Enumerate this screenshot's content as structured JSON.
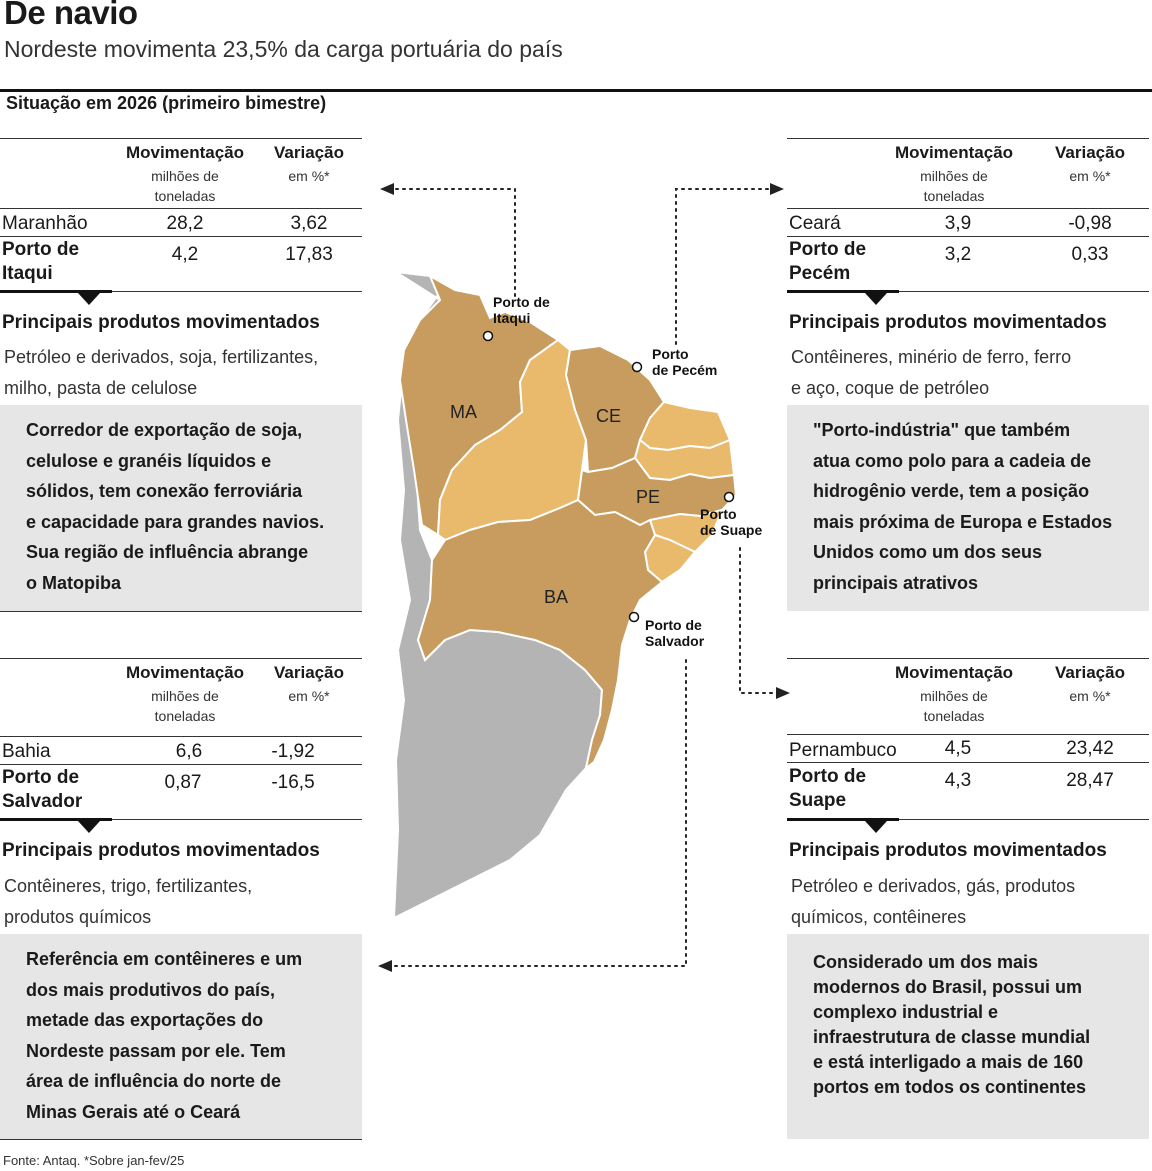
{
  "header": {
    "title": "De navio",
    "subtitle": "Nordeste movimenta 23,5% da carga portuária do país",
    "section": "Situação em 2026 (primeiro bimestre)"
  },
  "columns": {
    "mov": "Movimentação",
    "mov_unit": [
      "milhões de",
      "toneladas"
    ],
    "var": "Variação",
    "var_unit": "em %*"
  },
  "products_heading": "Principais produtos movimentados",
  "panels": {
    "itaqui": {
      "state": "Maranhão",
      "state_mov": "28,2",
      "state_var": "3,62",
      "port": [
        "Porto de",
        "Itaqui"
      ],
      "port_mov": "4,2",
      "port_var": "17,83",
      "products": [
        "Petróleo e derivados, soja, fertilizantes,",
        "milho, pasta de celulose"
      ],
      "note": [
        "Corredor de exportação de soja,",
        "celulose e granéis líquidos e",
        "sólidos, tem conexão ferroviária",
        "e capacidade para grandes navios.",
        "Sua região de influência abrange",
        "o Matopiba"
      ]
    },
    "pecem": {
      "state": "Ceará",
      "state_mov": "3,9",
      "state_var": "-0,98",
      "port": [
        "Porto de",
        "Pecém"
      ],
      "port_mov": "3,2",
      "port_var": "0,33",
      "products": [
        "Contêineres, minério de ferro, ferro",
        "e aço, coque de petróleo"
      ],
      "note": [
        "\"Porto-indústria\" que também",
        "atua como polo para a cadeia de",
        "hidrogênio verde, tem a posição",
        "mais próxima de Europa e Estados",
        "Unidos como um dos seus",
        "principais atrativos"
      ]
    },
    "salvador": {
      "state": "Bahia",
      "state_mov": "6,6",
      "state_var": "-1,92",
      "port": [
        "Porto de",
        "Salvador"
      ],
      "port_mov": "0,87",
      "port_var": "-16,5",
      "products": [
        "Contêineres, trigo, fertilizantes,",
        "produtos químicos"
      ],
      "note": [
        "Referência em contêineres e um",
        "dos mais produtivos do país,",
        "metade das exportações do",
        "Nordeste passam por ele. Tem",
        "área de influência do norte de",
        "Minas Gerais até o Ceará"
      ]
    },
    "suape": {
      "state": "Pernambuco",
      "state_mov": "4,5",
      "state_var": "23,42",
      "port": [
        "Porto de",
        "Suape"
      ],
      "port_mov": "4,3",
      "port_var": "28,47",
      "products": [
        "Petróleo e derivados, gás, produtos",
        "químicos, contêineres"
      ],
      "note": [
        "Considerado um dos mais",
        "modernos do Brasil, possui um",
        "complexo industrial e",
        "infraestrutura de classe mundial",
        "e está interligado a mais de 160",
        "portos em todos os continentes"
      ]
    }
  },
  "map": {
    "states": {
      "ma": "MA",
      "ce": "CE",
      "pe": "PE",
      "ba": "BA"
    },
    "ports": {
      "itaqui": [
        "Porto de",
        "Itaqui"
      ],
      "pecem": [
        "Porto",
        "de Pecém"
      ],
      "suape": [
        "Porto",
        "de Suape"
      ],
      "salvador": [
        "Porto de",
        "Salvador"
      ]
    },
    "colors": {
      "dark_state": "#c79c5e",
      "light_state": "#e9b96c",
      "other": "#b4b4b4",
      "note_bg": "#e6e6e6"
    }
  },
  "footer": "Fonte: Antaq. *Sobre jan-fev/25"
}
